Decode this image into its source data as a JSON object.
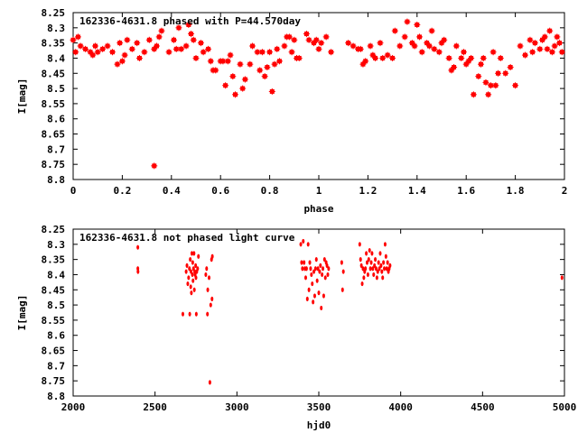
{
  "chart_data": [
    {
      "type": "scatter",
      "title": "162336-4631.8 phased with P=44.570day",
      "xlabel": "phase",
      "ylabel": "I[mag]",
      "xlim": [
        0,
        2
      ],
      "ylim": [
        8.8,
        8.25
      ],
      "y_inverted": true,
      "xticks": [
        "0",
        "0.2",
        "0.4",
        "0.6",
        "0.8",
        "1",
        "1.2",
        "1.4",
        "1.6",
        "1.8",
        "2"
      ],
      "yticks": [
        "8.25",
        "8.3",
        "8.35",
        "8.4",
        "8.45",
        "8.5",
        "8.55",
        "8.6",
        "8.65",
        "8.7",
        "8.75",
        "8.8"
      ],
      "marker_color": "#ff0000",
      "points": [
        [
          0.0,
          8.34
        ],
        [
          0.01,
          8.38
        ],
        [
          0.02,
          8.33
        ],
        [
          0.03,
          8.36
        ],
        [
          0.05,
          8.37
        ],
        [
          0.07,
          8.38
        ],
        [
          0.08,
          8.39
        ],
        [
          0.09,
          8.36
        ],
        [
          0.1,
          8.38
        ],
        [
          0.12,
          8.37
        ],
        [
          0.14,
          8.36
        ],
        [
          0.16,
          8.38
        ],
        [
          0.18,
          8.42
        ],
        [
          0.19,
          8.35
        ],
        [
          0.2,
          8.41
        ],
        [
          0.21,
          8.39
        ],
        [
          0.22,
          8.34
        ],
        [
          0.24,
          8.37
        ],
        [
          0.26,
          8.35
        ],
        [
          0.27,
          8.4
        ],
        [
          0.29,
          8.38
        ],
        [
          0.31,
          8.34
        ],
        [
          0.33,
          8.37
        ],
        [
          0.34,
          8.36
        ],
        [
          0.35,
          8.33
        ],
        [
          0.36,
          8.31
        ],
        [
          0.33,
          8.755
        ],
        [
          0.39,
          8.38
        ],
        [
          0.41,
          8.34
        ],
        [
          0.42,
          8.37
        ],
        [
          0.43,
          8.3
        ],
        [
          0.44,
          8.37
        ],
        [
          0.46,
          8.36
        ],
        [
          0.47,
          8.29
        ],
        [
          0.48,
          8.32
        ],
        [
          0.49,
          8.34
        ],
        [
          0.5,
          8.4
        ],
        [
          0.52,
          8.35
        ],
        [
          0.53,
          8.38
        ],
        [
          0.55,
          8.37
        ],
        [
          0.56,
          8.41
        ],
        [
          0.57,
          8.44
        ],
        [
          0.58,
          8.44
        ],
        [
          0.6,
          8.41
        ],
        [
          0.61,
          8.41
        ],
        [
          0.62,
          8.49
        ],
        [
          0.63,
          8.41
        ],
        [
          0.64,
          8.39
        ],
        [
          0.65,
          8.46
        ],
        [
          0.66,
          8.52
        ],
        [
          0.68,
          8.42
        ],
        [
          0.69,
          8.5
        ],
        [
          0.7,
          8.47
        ],
        [
          0.72,
          8.42
        ],
        [
          0.73,
          8.36
        ],
        [
          0.75,
          8.38
        ],
        [
          0.76,
          8.44
        ],
        [
          0.77,
          8.38
        ],
        [
          0.78,
          8.46
        ],
        [
          0.79,
          8.43
        ],
        [
          0.8,
          8.38
        ],
        [
          0.81,
          8.51
        ],
        [
          0.82,
          8.42
        ],
        [
          0.83,
          8.37
        ],
        [
          0.84,
          8.41
        ],
        [
          0.86,
          8.36
        ],
        [
          0.87,
          8.33
        ],
        [
          0.88,
          8.33
        ],
        [
          0.89,
          8.38
        ],
        [
          0.9,
          8.34
        ],
        [
          0.91,
          8.4
        ],
        [
          0.92,
          8.4
        ],
        [
          0.95,
          8.32
        ],
        [
          0.96,
          8.34
        ],
        [
          0.98,
          8.35
        ],
        [
          0.99,
          8.34
        ],
        [
          1.0,
          8.37
        ],
        [
          1.01,
          8.35
        ],
        [
          1.03,
          8.33
        ],
        [
          1.05,
          8.38
        ],
        [
          1.12,
          8.35
        ],
        [
          1.14,
          8.36
        ],
        [
          1.16,
          8.37
        ],
        [
          1.17,
          8.37
        ],
        [
          1.18,
          8.42
        ],
        [
          1.19,
          8.41
        ],
        [
          1.21,
          8.36
        ],
        [
          1.22,
          8.39
        ],
        [
          1.23,
          8.4
        ],
        [
          1.25,
          8.35
        ],
        [
          1.26,
          8.4
        ],
        [
          1.28,
          8.39
        ],
        [
          1.3,
          8.4
        ],
        [
          1.31,
          8.31
        ],
        [
          1.33,
          8.36
        ],
        [
          1.35,
          8.33
        ],
        [
          1.36,
          8.28
        ],
        [
          1.38,
          8.35
        ],
        [
          1.39,
          8.36
        ],
        [
          1.4,
          8.29
        ],
        [
          1.41,
          8.33
        ],
        [
          1.42,
          8.38
        ],
        [
          1.44,
          8.35
        ],
        [
          1.45,
          8.36
        ],
        [
          1.46,
          8.31
        ],
        [
          1.47,
          8.37
        ],
        [
          1.49,
          8.38
        ],
        [
          1.5,
          8.35
        ],
        [
          1.51,
          8.34
        ],
        [
          1.53,
          8.4
        ],
        [
          1.54,
          8.44
        ],
        [
          1.55,
          8.43
        ],
        [
          1.56,
          8.36
        ],
        [
          1.58,
          8.4
        ],
        [
          1.59,
          8.38
        ],
        [
          1.6,
          8.42
        ],
        [
          1.61,
          8.41
        ],
        [
          1.62,
          8.4
        ],
        [
          1.63,
          8.52
        ],
        [
          1.65,
          8.46
        ],
        [
          1.66,
          8.42
        ],
        [
          1.67,
          8.4
        ],
        [
          1.68,
          8.48
        ],
        [
          1.69,
          8.52
        ],
        [
          1.7,
          8.49
        ],
        [
          1.71,
          8.38
        ],
        [
          1.72,
          8.49
        ],
        [
          1.73,
          8.45
        ],
        [
          1.74,
          8.4
        ],
        [
          1.76,
          8.45
        ],
        [
          1.78,
          8.43
        ],
        [
          1.8,
          8.49
        ],
        [
          1.82,
          8.36
        ],
        [
          1.84,
          8.39
        ],
        [
          1.86,
          8.34
        ],
        [
          1.87,
          8.38
        ],
        [
          1.88,
          8.35
        ],
        [
          1.9,
          8.37
        ],
        [
          1.91,
          8.34
        ],
        [
          1.92,
          8.33
        ],
        [
          1.93,
          8.37
        ],
        [
          1.94,
          8.31
        ],
        [
          1.95,
          8.38
        ],
        [
          1.96,
          8.36
        ],
        [
          1.97,
          8.33
        ],
        [
          1.98,
          8.35
        ],
        [
          1.99,
          8.38
        ]
      ]
    },
    {
      "type": "scatter",
      "title": "162336-4631.8 not phased light curve",
      "xlabel": "hjd0",
      "ylabel": "I[mag]",
      "xlim": [
        2000,
        5000
      ],
      "ylim": [
        8.8,
        8.25
      ],
      "y_inverted": true,
      "xticks": [
        "2000",
        "2500",
        "3000",
        "3500",
        "4000",
        "4500",
        "5000"
      ],
      "yticks": [
        "8.25",
        "8.3",
        "8.35",
        "8.4",
        "8.45",
        "8.5",
        "8.55",
        "8.6",
        "8.65",
        "8.7",
        "8.75",
        "8.8"
      ],
      "marker_color": "#ff0000",
      "points": [
        [
          2395,
          8.31
        ],
        [
          2395,
          8.38
        ],
        [
          2396,
          8.39
        ],
        [
          2670,
          8.53
        ],
        [
          2690,
          8.39
        ],
        [
          2695,
          8.37
        ],
        [
          2700,
          8.43
        ],
        [
          2705,
          8.41
        ],
        [
          2710,
          8.38
        ],
        [
          2712,
          8.53
        ],
        [
          2715,
          8.35
        ],
        [
          2718,
          8.44
        ],
        [
          2720,
          8.39
        ],
        [
          2722,
          8.46
        ],
        [
          2725,
          8.33
        ],
        [
          2728,
          8.4
        ],
        [
          2730,
          8.36
        ],
        [
          2732,
          8.42
        ],
        [
          2735,
          8.38
        ],
        [
          2738,
          8.33
        ],
        [
          2740,
          8.45
        ],
        [
          2742,
          8.39
        ],
        [
          2745,
          8.4
        ],
        [
          2748,
          8.37
        ],
        [
          2750,
          8.41
        ],
        [
          2752,
          8.53
        ],
        [
          2755,
          8.39
        ],
        [
          2760,
          8.38
        ],
        [
          2765,
          8.34
        ],
        [
          2810,
          8.4
        ],
        [
          2815,
          8.38
        ],
        [
          2820,
          8.53
        ],
        [
          2822,
          8.45
        ],
        [
          2830,
          8.41
        ],
        [
          2835,
          8.755
        ],
        [
          2840,
          8.5
        ],
        [
          2845,
          8.35
        ],
        [
          2848,
          8.48
        ],
        [
          2850,
          8.34
        ],
        [
          3390,
          8.3
        ],
        [
          3395,
          8.36
        ],
        [
          3400,
          8.38
        ],
        [
          3405,
          8.29
        ],
        [
          3410,
          8.36
        ],
        [
          3415,
          8.38
        ],
        [
          3420,
          8.41
        ],
        [
          3425,
          8.38
        ],
        [
          3430,
          8.48
        ],
        [
          3435,
          8.3
        ],
        [
          3440,
          8.45
        ],
        [
          3445,
          8.36
        ],
        [
          3450,
          8.38
        ],
        [
          3455,
          8.4
        ],
        [
          3460,
          8.43
        ],
        [
          3465,
          8.49
        ],
        [
          3470,
          8.39
        ],
        [
          3475,
          8.47
        ],
        [
          3480,
          8.38
        ],
        [
          3485,
          8.35
        ],
        [
          3490,
          8.42
        ],
        [
          3495,
          8.38
        ],
        [
          3500,
          8.46
        ],
        [
          3505,
          8.39
        ],
        [
          3510,
          8.37
        ],
        [
          3515,
          8.51
        ],
        [
          3520,
          8.4
        ],
        [
          3525,
          8.38
        ],
        [
          3530,
          8.47
        ],
        [
          3535,
          8.35
        ],
        [
          3540,
          8.41
        ],
        [
          3545,
          8.36
        ],
        [
          3550,
          8.37
        ],
        [
          3555,
          8.4
        ],
        [
          3560,
          8.38
        ],
        [
          3640,
          8.36
        ],
        [
          3645,
          8.45
        ],
        [
          3650,
          8.39
        ],
        [
          3750,
          8.3
        ],
        [
          3755,
          8.35
        ],
        [
          3760,
          8.37
        ],
        [
          3765,
          8.43
        ],
        [
          3770,
          8.38
        ],
        [
          3775,
          8.41
        ],
        [
          3780,
          8.39
        ],
        [
          3785,
          8.38
        ],
        [
          3790,
          8.33
        ],
        [
          3795,
          8.36
        ],
        [
          3800,
          8.4
        ],
        [
          3805,
          8.35
        ],
        [
          3810,
          8.32
        ],
        [
          3815,
          8.38
        ],
        [
          3820,
          8.36
        ],
        [
          3825,
          8.33
        ],
        [
          3830,
          8.38
        ],
        [
          3835,
          8.4
        ],
        [
          3840,
          8.37
        ],
        [
          3845,
          8.35
        ],
        [
          3850,
          8.38
        ],
        [
          3855,
          8.41
        ],
        [
          3860,
          8.39
        ],
        [
          3865,
          8.36
        ],
        [
          3870,
          8.38
        ],
        [
          3875,
          8.33
        ],
        [
          3880,
          8.37
        ],
        [
          3885,
          8.39
        ],
        [
          3890,
          8.41
        ],
        [
          3895,
          8.36
        ],
        [
          3900,
          8.38
        ],
        [
          3905,
          8.3
        ],
        [
          3910,
          8.34
        ],
        [
          3915,
          8.38
        ],
        [
          3920,
          8.36
        ],
        [
          3925,
          8.39
        ],
        [
          3930,
          8.38
        ],
        [
          3935,
          8.37
        ],
        [
          4985,
          8.41
        ]
      ]
    }
  ]
}
